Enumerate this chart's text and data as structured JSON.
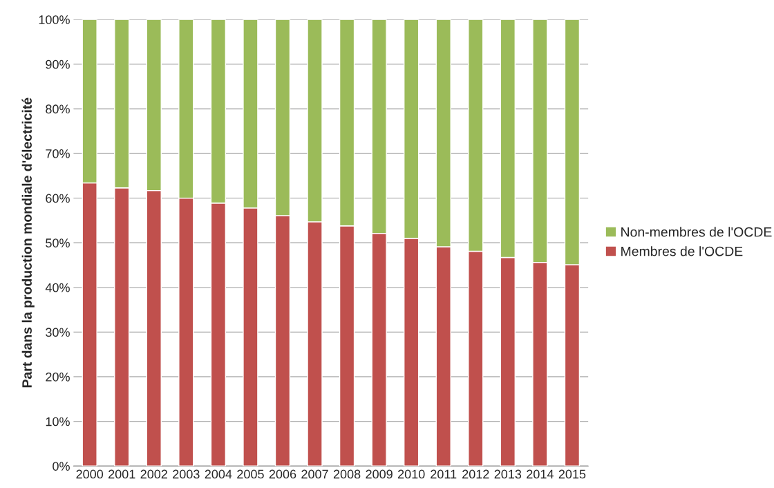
{
  "chart_data": {
    "type": "bar",
    "stacked": true,
    "ylabel": "Part dans la production mondiale d'électricité",
    "categories": [
      "2000",
      "2001",
      "2002",
      "2003",
      "2004",
      "2005",
      "2006",
      "2007",
      "2008",
      "2009",
      "2010",
      "2011",
      "2012",
      "2013",
      "2014",
      "2015"
    ],
    "series": [
      {
        "name": "Membres de l'OCDE",
        "color": "#c0504d",
        "values": [
          63.4,
          62.3,
          61.7,
          60.0,
          58.9,
          57.8,
          56.1,
          54.7,
          53.8,
          52.1,
          51.0,
          49.1,
          48.1,
          46.7,
          45.6,
          45.1
        ]
      },
      {
        "name": "Non-membres de l'OCDE",
        "color": "#9bbb59",
        "values": [
          36.6,
          37.7,
          38.3,
          40.0,
          41.1,
          42.2,
          43.9,
          45.3,
          46.2,
          47.9,
          49.0,
          50.9,
          51.9,
          53.3,
          54.4,
          54.9
        ]
      }
    ],
    "ylim": [
      0,
      100
    ],
    "yticks": [
      {
        "value": 0,
        "label": "0%"
      },
      {
        "value": 10,
        "label": "10%"
      },
      {
        "value": 20,
        "label": "20%"
      },
      {
        "value": 30,
        "label": "30%"
      },
      {
        "value": 40,
        "label": "40%"
      },
      {
        "value": 50,
        "label": "50%"
      },
      {
        "value": 60,
        "label": "60%"
      },
      {
        "value": 70,
        "label": "70%"
      },
      {
        "value": 80,
        "label": "80%"
      },
      {
        "value": 90,
        "label": "90%"
      },
      {
        "value": 100,
        "label": "100%"
      }
    ],
    "grid": "y",
    "legend": "right"
  }
}
